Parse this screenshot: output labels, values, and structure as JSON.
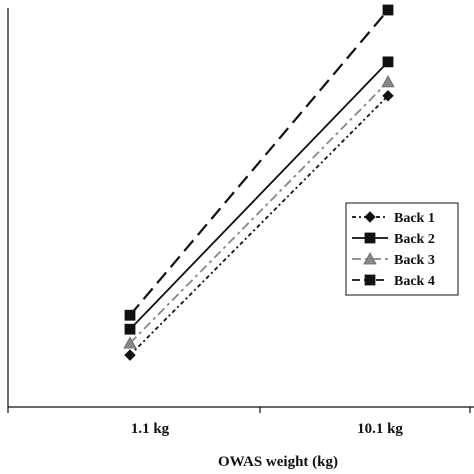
{
  "chart_data": {
    "type": "line",
    "title": "",
    "xlabel": "OWAS weight (kg)",
    "ylabel": "",
    "categories": [
      "1.1 kg",
      "10.1 kg"
    ],
    "ylim": [
      0,
      100
    ],
    "grid": false,
    "legend_position": "right",
    "series": [
      {
        "name": "Back 1",
        "values": [
          13.0,
          78.0
        ],
        "marker": "diamond",
        "line_style": "dotted-dash",
        "color": "#111111"
      },
      {
        "name": "Back 2",
        "values": [
          19.5,
          86.5
        ],
        "marker": "square",
        "line_style": "solid",
        "color": "#111111"
      },
      {
        "name": "Back 3",
        "values": [
          16.0,
          81.5
        ],
        "marker": "triangle",
        "line_style": "dash-dot",
        "color": "#888888"
      },
      {
        "name": "Back 4",
        "values": [
          23.0,
          99.5
        ],
        "marker": "square",
        "line_style": "dashed",
        "color": "#111111"
      }
    ]
  }
}
